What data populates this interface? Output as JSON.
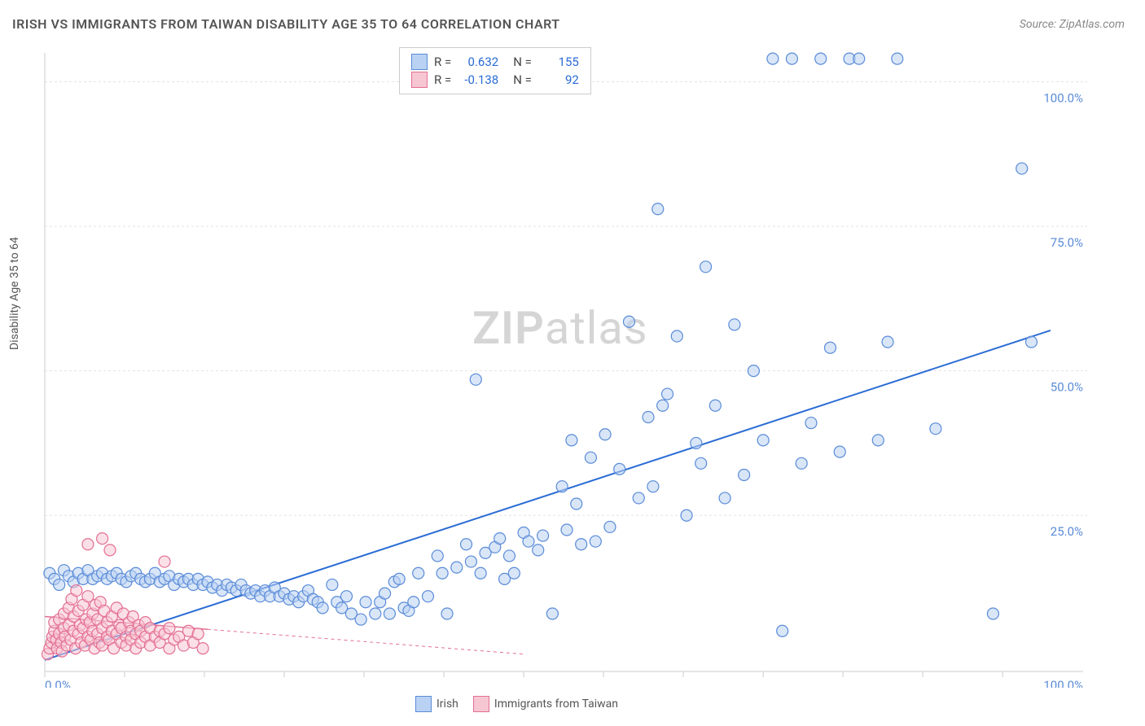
{
  "title": "IRISH VS IMMIGRANTS FROM TAIWAN DISABILITY AGE 35 TO 64 CORRELATION CHART",
  "source": "Source: ZipAtlas.com",
  "ylabel": "Disability Age 35 to 64",
  "watermark_a": "ZIP",
  "watermark_b": "atlas",
  "chart": {
    "type": "scatter",
    "background_color": "#ffffff",
    "grid_color": "#e2e2e2",
    "axis_color": "#cccccc",
    "xlim": [
      0,
      105
    ],
    "ylim": [
      -2,
      105
    ],
    "yticks": [
      25,
      50,
      75,
      100
    ],
    "ytick_labels": [
      "25.0%",
      "50.0%",
      "75.0%",
      "100.0%"
    ],
    "x_end_label": "100.0%",
    "x_start_label": "0.0%",
    "xticks_minor": [
      0,
      8.33,
      16.66,
      25,
      33.33,
      41.66,
      50,
      58.33,
      66.66,
      75,
      83.33,
      91.66,
      100
    ],
    "marker_radius": 7,
    "marker_stroke_width": 1.2,
    "series": [
      {
        "name": "Irish",
        "fill": "#b9d2f3",
        "stroke": "#5a8bd8",
        "fill_opacity": 0.55,
        "R": "0.632",
        "N": "155",
        "trend": {
          "x1": 0,
          "y1": 0,
          "x2": 105,
          "y2": 57,
          "stroke": "#2b6cd4",
          "width": 2,
          "dash": "none"
        },
        "points": [
          [
            0.5,
            15
          ],
          [
            1,
            14
          ],
          [
            1.5,
            13
          ],
          [
            2,
            15.5
          ],
          [
            2.5,
            14.5
          ],
          [
            3,
            13.5
          ],
          [
            3.5,
            15
          ],
          [
            4,
            14
          ],
          [
            4.5,
            15.5
          ],
          [
            5,
            14
          ],
          [
            5.5,
            14.5
          ],
          [
            6,
            15
          ],
          [
            6.5,
            14
          ],
          [
            7,
            14.5
          ],
          [
            7.5,
            15
          ],
          [
            8,
            14
          ],
          [
            8.5,
            13.5
          ],
          [
            9,
            14.5
          ],
          [
            9.5,
            15
          ],
          [
            10,
            14
          ],
          [
            10.5,
            13.5
          ],
          [
            11,
            14
          ],
          [
            11.5,
            15
          ],
          [
            12,
            13.5
          ],
          [
            12.5,
            14
          ],
          [
            13,
            14.5
          ],
          [
            13.5,
            13
          ],
          [
            14,
            14
          ],
          [
            14.5,
            13.5
          ],
          [
            15,
            14
          ],
          [
            15.5,
            13
          ],
          [
            16,
            14
          ],
          [
            16.5,
            13
          ],
          [
            17,
            13.5
          ],
          [
            17.5,
            12.5
          ],
          [
            18,
            13
          ],
          [
            18.5,
            12
          ],
          [
            19,
            13
          ],
          [
            19.5,
            12.5
          ],
          [
            20,
            12
          ],
          [
            20.5,
            13
          ],
          [
            21,
            12
          ],
          [
            21.5,
            11.5
          ],
          [
            22,
            12
          ],
          [
            22.5,
            11
          ],
          [
            23,
            12
          ],
          [
            23.5,
            11
          ],
          [
            24,
            12.5
          ],
          [
            24.5,
            11
          ],
          [
            25,
            11.5
          ],
          [
            25.5,
            10.5
          ],
          [
            26,
            11
          ],
          [
            26.5,
            10
          ],
          [
            27,
            11
          ],
          [
            27.5,
            12
          ],
          [
            28,
            10.5
          ],
          [
            28.5,
            10
          ],
          [
            29,
            9
          ],
          [
            30,
            13
          ],
          [
            30.5,
            10
          ],
          [
            31,
            9
          ],
          [
            31.5,
            11
          ],
          [
            32,
            8
          ],
          [
            33,
            7
          ],
          [
            33.5,
            10
          ],
          [
            34.5,
            8
          ],
          [
            35,
            10
          ],
          [
            35.5,
            11.5
          ],
          [
            36,
            8
          ],
          [
            36.5,
            13.5
          ],
          [
            37,
            14
          ],
          [
            37.5,
            9
          ],
          [
            38,
            8.5
          ],
          [
            38.5,
            10
          ],
          [
            39,
            15
          ],
          [
            40,
            11
          ],
          [
            41,
            18
          ],
          [
            41.5,
            15
          ],
          [
            42,
            8
          ],
          [
            43,
            16
          ],
          [
            44,
            20
          ],
          [
            44.5,
            17
          ],
          [
            45,
            48.5
          ],
          [
            45.5,
            15
          ],
          [
            46,
            18.5
          ],
          [
            47,
            19.5
          ],
          [
            47.5,
            21
          ],
          [
            48,
            14
          ],
          [
            48.5,
            18
          ],
          [
            49,
            15
          ],
          [
            50,
            22
          ],
          [
            50.5,
            20.5
          ],
          [
            51.5,
            19
          ],
          [
            52,
            21.5
          ],
          [
            53,
            8
          ],
          [
            54,
            30
          ],
          [
            54.5,
            22.5
          ],
          [
            55,
            38
          ],
          [
            55.5,
            27
          ],
          [
            56,
            20
          ],
          [
            57,
            35
          ],
          [
            57.5,
            20.5
          ],
          [
            58.5,
            39
          ],
          [
            59,
            23
          ],
          [
            60,
            33
          ],
          [
            61,
            58.5
          ],
          [
            62,
            28
          ],
          [
            63,
            42
          ],
          [
            63.5,
            30
          ],
          [
            64,
            78
          ],
          [
            64.5,
            44
          ],
          [
            65,
            46
          ],
          [
            66,
            56
          ],
          [
            67,
            25
          ],
          [
            68,
            37.5
          ],
          [
            68.5,
            34
          ],
          [
            69,
            68
          ],
          [
            70,
            44
          ],
          [
            71,
            28
          ],
          [
            72,
            58
          ],
          [
            73,
            32
          ],
          [
            74,
            50
          ],
          [
            75,
            38
          ],
          [
            76,
            104
          ],
          [
            77,
            5
          ],
          [
            78,
            104
          ],
          [
            79,
            34
          ],
          [
            80,
            41
          ],
          [
            81,
            104
          ],
          [
            82,
            54
          ],
          [
            83,
            36
          ],
          [
            84,
            104
          ],
          [
            85,
            104
          ],
          [
            87,
            38
          ],
          [
            88,
            55
          ],
          [
            89,
            104
          ],
          [
            93,
            40
          ],
          [
            99,
            8
          ],
          [
            102,
            85
          ],
          [
            103,
            55
          ]
        ]
      },
      {
        "name": "Immigrants from Taiwan",
        "fill": "#f7c6d3",
        "stroke": "#e36f93",
        "fill_opacity": 0.55,
        "R": "-0.138",
        "N": "92",
        "trend": {
          "x1": 0,
          "y1": 7.5,
          "x2": 50,
          "y2": 1,
          "stroke": "#e36f93",
          "width": 1.5,
          "dash": "4 4",
          "solid_until_x": 17
        },
        "points": [
          [
            0.3,
            1
          ],
          [
            0.5,
            2
          ],
          [
            0.7,
            3
          ],
          [
            0.8,
            4
          ],
          [
            1,
            5
          ],
          [
            1,
            6.5
          ],
          [
            1.2,
            3.5
          ],
          [
            1.3,
            2
          ],
          [
            1.5,
            4.5
          ],
          [
            1.5,
            7
          ],
          [
            1.7,
            3
          ],
          [
            1.8,
            1.5
          ],
          [
            2,
            5.5
          ],
          [
            2,
            8
          ],
          [
            2.1,
            4
          ],
          [
            2.3,
            2.5
          ],
          [
            2.5,
            6
          ],
          [
            2.5,
            9
          ],
          [
            2.7,
            3.5
          ],
          [
            2.8,
            10.5
          ],
          [
            3,
            5
          ],
          [
            3,
            7.5
          ],
          [
            3.2,
            2
          ],
          [
            3.3,
            12
          ],
          [
            3.5,
            4.5
          ],
          [
            3.5,
            8.5
          ],
          [
            3.7,
            6
          ],
          [
            3.8,
            3
          ],
          [
            4,
            5.5
          ],
          [
            4,
            9.5
          ],
          [
            4.2,
            2.5
          ],
          [
            4.3,
            7
          ],
          [
            4.5,
            4
          ],
          [
            4.5,
            11
          ],
          [
            4.7,
            6.5
          ],
          [
            4.8,
            3.5
          ],
          [
            5,
            5
          ],
          [
            5,
            8
          ],
          [
            5.2,
            2
          ],
          [
            5.3,
            9.5
          ],
          [
            5.5,
            4.5
          ],
          [
            5.5,
            7
          ],
          [
            5.7,
            3
          ],
          [
            5.8,
            10
          ],
          [
            6,
            5.5
          ],
          [
            6,
            2.5
          ],
          [
            6.2,
            8.5
          ],
          [
            6.5,
            4
          ],
          [
            6.5,
            6.5
          ],
          [
            6.7,
            3.5
          ],
          [
            6.8,
            19
          ],
          [
            6,
            21
          ],
          [
            7,
            5
          ],
          [
            7,
            7.5
          ],
          [
            7.2,
            2
          ],
          [
            7.5,
            4.5
          ],
          [
            7.5,
            9
          ],
          [
            7.8,
            6
          ],
          [
            8,
            3
          ],
          [
            8,
            5.5
          ],
          [
            8.2,
            8
          ],
          [
            8.5,
            4
          ],
          [
            8.5,
            2.5
          ],
          [
            8.8,
            6.5
          ],
          [
            9,
            5
          ],
          [
            9,
            3.5
          ],
          [
            9.2,
            7.5
          ],
          [
            9.5,
            4.5
          ],
          [
            9.5,
            2
          ],
          [
            9.8,
            6
          ],
          [
            10,
            5
          ],
          [
            10,
            3
          ],
          [
            10.5,
            4
          ],
          [
            10.5,
            6.5
          ],
          [
            11,
            2.5
          ],
          [
            11,
            5.5
          ],
          [
            11.5,
            4
          ],
          [
            12,
            3
          ],
          [
            12,
            5
          ],
          [
            12.5,
            17
          ],
          [
            12.5,
            4.5
          ],
          [
            13,
            2
          ],
          [
            13,
            5.5
          ],
          [
            13.5,
            3.5
          ],
          [
            14,
            4
          ],
          [
            14.5,
            2.5
          ],
          [
            15,
            5
          ],
          [
            15.5,
            3
          ],
          [
            16,
            4.5
          ],
          [
            16.5,
            2
          ],
          [
            4.5,
            20
          ]
        ]
      }
    ],
    "legend_bottom": [
      {
        "label": "Irish",
        "fill": "#b9d2f3",
        "stroke": "#5a8bd8"
      },
      {
        "label": "Immigrants from Taiwan",
        "fill": "#f7c6d3",
        "stroke": "#e36f93"
      }
    ]
  }
}
